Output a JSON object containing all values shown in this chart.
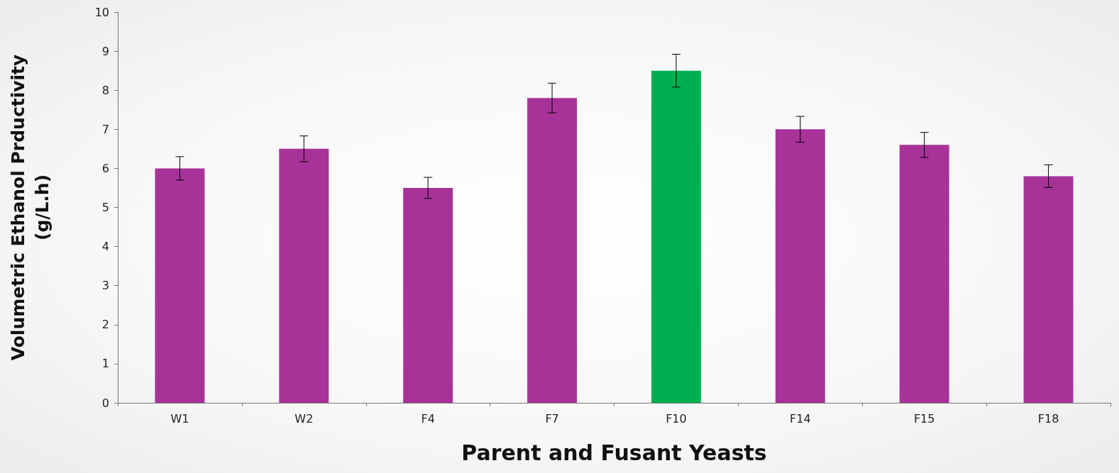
{
  "chart_data": {
    "type": "bar",
    "xlabel": "Parent and Fusant Yeasts",
    "ylabel": "Volumetric Ethanol Prductivity\n(g/L.h)",
    "categories": [
      "W1",
      "W2",
      "F4",
      "F7",
      "F10",
      "F14",
      "F15",
      "F18"
    ],
    "values": [
      6.0,
      6.5,
      5.5,
      7.8,
      8.5,
      7.0,
      6.6,
      5.8
    ],
    "errors": [
      0.3,
      0.33,
      0.27,
      0.38,
      0.42,
      0.33,
      0.32,
      0.29
    ],
    "colors": [
      "#a73399",
      "#a73399",
      "#a73399",
      "#a73399",
      "#00b050",
      "#a73399",
      "#a73399",
      "#a73399"
    ],
    "ylim": [
      0,
      10
    ],
    "yticks": [
      0,
      1,
      2,
      3,
      4,
      5,
      6,
      7,
      8,
      9,
      10
    ],
    "grid": false
  }
}
